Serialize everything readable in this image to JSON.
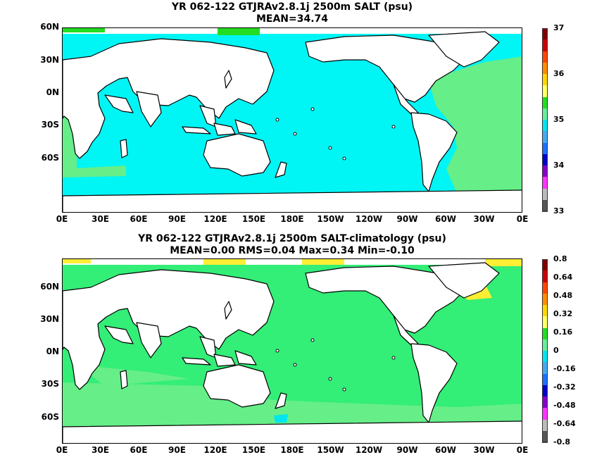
{
  "panel_top": {
    "title": "YR 062-122 GTJRAv2.8.1j 2500m SALT (psu)",
    "subtitle": "MEAN=34.74",
    "colorbar_labels": [
      "37",
      "36",
      "35",
      "34",
      "33"
    ],
    "colorbar_colors": [
      "#800000",
      "#cc0000",
      "#ff4500",
      "#ff8c00",
      "#ffd700",
      "#ffff66",
      "#22dd22",
      "#66ee99",
      "#00e5ee",
      "#44aaee",
      "#1e6fff",
      "#0000cc",
      "#8800cc",
      "#ff33ff",
      "#bbbbbb",
      "#555555"
    ],
    "fill_description_colors": {
      "pacific_indian": "#00f5f5",
      "atlantic": "#66ee88",
      "southern": "#00f5f5",
      "arctic_edge": "#22dd22"
    }
  },
  "panel_bottom": {
    "title": "YR 062-122 GTJRAv2.8.1j 2500m SALT-climatology (psu)",
    "subtitle": "MEAN=0.00   RMS=0.04   Max=0.34   Min=-0.10",
    "colorbar_labels": [
      "0.8",
      "0.64",
      "0.48",
      "0.32",
      "0.16",
      "0",
      "-0.16",
      "-0.32",
      "-0.48",
      "-0.64",
      "-0.8"
    ],
    "colorbar_colors": [
      "#800000",
      "#cc0000",
      "#ff4500",
      "#ff8c00",
      "#ffd700",
      "#ffff66",
      "#22dd22",
      "#66ee99",
      "#00e5ee",
      "#44aaee",
      "#1e6fff",
      "#0000cc",
      "#8800cc",
      "#ff33ff",
      "#bbbbbb",
      "#555555"
    ],
    "fill_description_colors": {
      "main": "#33ee77",
      "light": "#66ee88",
      "yellow": "#ffee33",
      "cyan": "#00e5ee"
    }
  },
  "axes": {
    "lat_labels": [
      "60N",
      "30N",
      "0N",
      "30S",
      "60S"
    ],
    "lon_labels": [
      "0E",
      "30E",
      "60E",
      "90E",
      "120E",
      "150E",
      "180E",
      "150W",
      "120W",
      "90W",
      "60W",
      "30W",
      "0E"
    ]
  }
}
